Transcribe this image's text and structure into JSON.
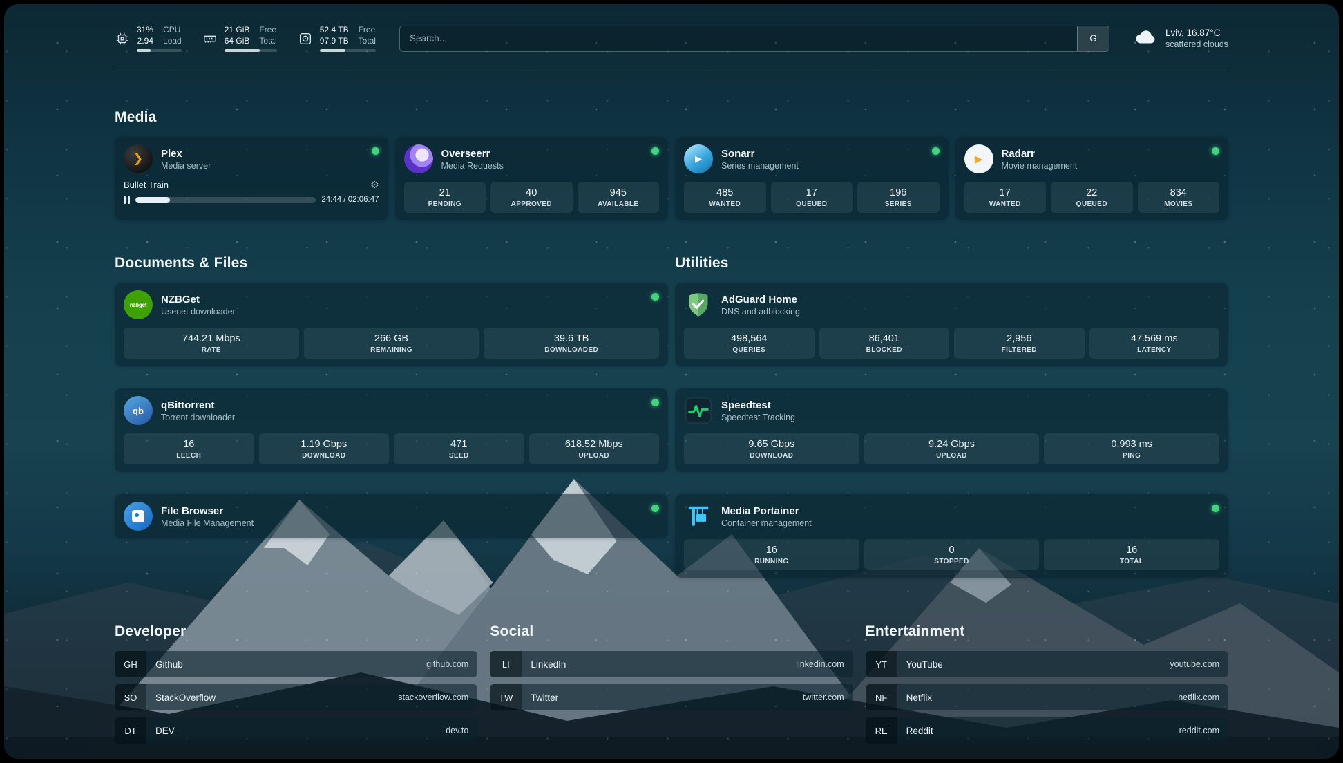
{
  "topbar": {
    "cpu": {
      "usage": "31%",
      "load": "2.94",
      "label_usage": "CPU",
      "label_load": "Load",
      "percent": 31
    },
    "memory": {
      "free": "21 GiB",
      "total": "64 GiB",
      "label_free": "Free",
      "label_total": "Total",
      "percent": 67
    },
    "disk": {
      "free": "52.4 TB",
      "total": "97.9 TB",
      "label_free": "Free",
      "label_total": "Total",
      "percent": 46
    },
    "search": {
      "placeholder": "Search...",
      "provider_button": "G"
    },
    "weather": {
      "location": "Lviv, 16.87°C",
      "condition": "scattered clouds"
    }
  },
  "media": {
    "title": "Media",
    "plex": {
      "name": "Plex",
      "desc": "Media server",
      "now_playing": "Bullet Train",
      "time": "24:44 / 02:06:47",
      "progress_percent": 19
    },
    "overseerr": {
      "name": "Overseerr",
      "desc": "Media Requests",
      "stats": [
        {
          "value": "21",
          "label": "PENDING"
        },
        {
          "value": "40",
          "label": "APPROVED"
        },
        {
          "value": "945",
          "label": "AVAILABLE"
        }
      ]
    },
    "sonarr": {
      "name": "Sonarr",
      "desc": "Series management",
      "stats": [
        {
          "value": "485",
          "label": "WANTED"
        },
        {
          "value": "17",
          "label": "QUEUED"
        },
        {
          "value": "196",
          "label": "SERIES"
        }
      ]
    },
    "radarr": {
      "name": "Radarr",
      "desc": "Movie management",
      "stats": [
        {
          "value": "17",
          "label": "WANTED"
        },
        {
          "value": "22",
          "label": "QUEUED"
        },
        {
          "value": "834",
          "label": "MOVIES"
        }
      ]
    }
  },
  "documents": {
    "title": "Documents & Files",
    "nzbget": {
      "name": "NZBGet",
      "desc": "Usenet downloader",
      "stats": [
        {
          "value": "744.21 Mbps",
          "label": "RATE"
        },
        {
          "value": "266 GB",
          "label": "REMAINING"
        },
        {
          "value": "39.6 TB",
          "label": "DOWNLOADED"
        }
      ]
    },
    "qbittorrent": {
      "name": "qBittorrent",
      "desc": "Torrent downloader",
      "stats": [
        {
          "value": "16",
          "label": "LEECH"
        },
        {
          "value": "1.19 Gbps",
          "label": "DOWNLOAD"
        },
        {
          "value": "471",
          "label": "SEED"
        },
        {
          "value": "618.52 Mbps",
          "label": "UPLOAD"
        }
      ]
    },
    "filebrowser": {
      "name": "File Browser",
      "desc": "Media File Management"
    }
  },
  "utilities": {
    "title": "Utilities",
    "adguard": {
      "name": "AdGuard Home",
      "desc": "DNS and adblocking",
      "stats": [
        {
          "value": "498,564",
          "label": "QUERIES"
        },
        {
          "value": "86,401",
          "label": "BLOCKED"
        },
        {
          "value": "2,956",
          "label": "FILTERED"
        },
        {
          "value": "47.569 ms",
          "label": "LATENCY"
        }
      ]
    },
    "speedtest": {
      "name": "Speedtest",
      "desc": "Speedtest Tracking",
      "stats": [
        {
          "value": "9.65 Gbps",
          "label": "DOWNLOAD"
        },
        {
          "value": "9.24 Gbps",
          "label": "UPLOAD"
        },
        {
          "value": "0.993 ms",
          "label": "PING"
        }
      ]
    },
    "portainer": {
      "name": "Media Portainer",
      "desc": "Container management",
      "stats": [
        {
          "value": "16",
          "label": "RUNNING"
        },
        {
          "value": "0",
          "label": "STOPPED"
        },
        {
          "value": "16",
          "label": "TOTAL"
        }
      ]
    }
  },
  "bookmarks": {
    "developer": {
      "title": "Developer",
      "items": [
        {
          "abbr": "GH",
          "name": "Github",
          "url": "github.com"
        },
        {
          "abbr": "SO",
          "name": "StackOverflow",
          "url": "stackoverflow.com"
        },
        {
          "abbr": "DT",
          "name": "DEV",
          "url": "dev.to"
        }
      ]
    },
    "social": {
      "title": "Social",
      "items": [
        {
          "abbr": "LI",
          "name": "LinkedIn",
          "url": "linkedin.com"
        },
        {
          "abbr": "TW",
          "name": "Twitter",
          "url": "twitter.com"
        }
      ]
    },
    "entertainment": {
      "title": "Entertainment",
      "items": [
        {
          "abbr": "YT",
          "name": "YouTube",
          "url": "youtube.com"
        },
        {
          "abbr": "NF",
          "name": "Netflix",
          "url": "netflix.com"
        },
        {
          "abbr": "RE",
          "name": "Reddit",
          "url": "reddit.com"
        }
      ]
    }
  },
  "icons": {
    "plex_glyph": "❯",
    "sonarr_glyph": "▶",
    "radarr_glyph": "▶",
    "nzbget_text": "nzbget",
    "qbittorrent_text": "qb",
    "gear_glyph": "⚙"
  },
  "colors": {
    "status_online": "#41d67d",
    "plex_accent": "#e5a00d",
    "overseerr_accent": "#5b32c7",
    "sonarr_accent": "#2ea7e0",
    "radarr_accent": "#f7a823",
    "nzbget_accent": "#3fa104",
    "qbittorrent_accent": "#2f67ba",
    "adguard_accent": "#67b279",
    "speedtest_accent": "#18d06b",
    "portainer_accent": "#3ec6ff"
  }
}
